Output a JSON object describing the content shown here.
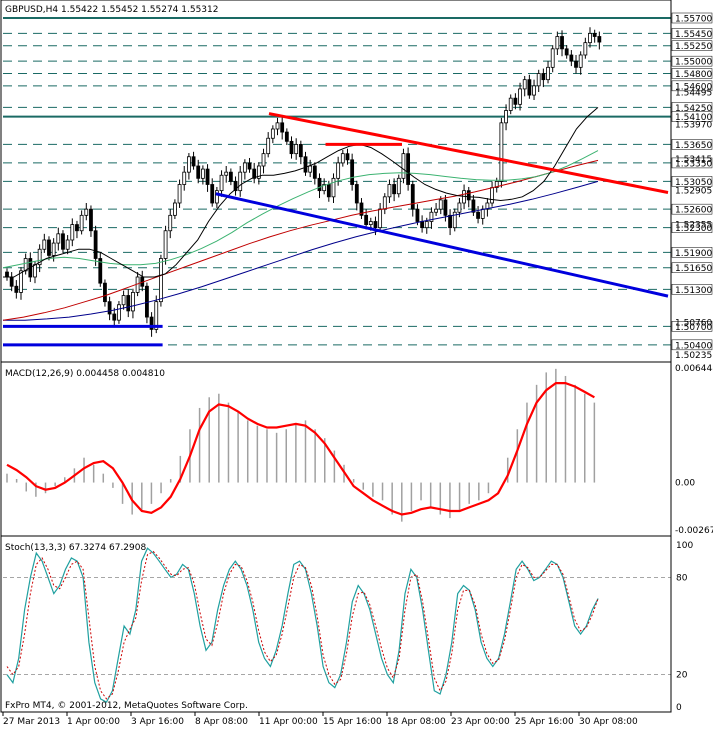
{
  "chart_data": {
    "type": "candlestick",
    "symbol_header": "GBPUSD,H4  1.55422 1.55452 1.55274 1.55312",
    "copyright": "FxPro MT4, © 2001-2012, MetaQuotes Software Corp.",
    "colors": {
      "background": "#ffffff",
      "candles": "#000000",
      "grid": "#1a6a64",
      "ma_fast": "#000000",
      "ma_green": "#3cb371",
      "ma_red": "#c00000",
      "ma_blue": "#00008b",
      "trend_red": "#ff0000",
      "trend_blue": "#0000dd",
      "macd_hist": "#a0a0a0",
      "macd_signal": "#ff0000",
      "stoch_main": "#20a0a0",
      "stoch_signal": "#cc0000"
    },
    "price_axis": {
      "min": 1.50235,
      "max": 1.557,
      "major_ticks": [
        "1.55700",
        "1.55450",
        "1.55250",
        "1.55000",
        "1.54800",
        "1.54600",
        "1.54250",
        "1.54100",
        "1.53650",
        "1.53350",
        "1.53050",
        "1.52600",
        "1.52300",
        "1.51900",
        "1.51650",
        "1.51300",
        "1.50700",
        "1.50400"
      ],
      "minor_ticks": [
        "1.54495",
        "1.53970",
        "1.53415",
        "1.52905",
        "1.52355",
        "1.50760",
        "1.50235"
      ]
    },
    "x_axis": {
      "labels": [
        "27 Mar 2013",
        "1 Apr 00:00",
        "3 Apr 16:00",
        "8 Apr 08:00",
        "11 Apr 00:00",
        "15 Apr 16:00",
        "18 Apr 08:00",
        "23 Apr 00:00",
        "25 Apr 16:00",
        "30 Apr 08:00"
      ]
    },
    "closes": [
      1.515,
      1.5135,
      1.5125,
      1.516,
      1.518,
      1.515,
      1.517,
      1.5195,
      1.521,
      1.5185,
      1.5205,
      1.522,
      1.5195,
      1.521,
      1.5235,
      1.5225,
      1.525,
      1.526,
      1.5225,
      1.518,
      1.514,
      1.511,
      1.509,
      1.508,
      1.5105,
      1.512,
      1.5095,
      1.5125,
      1.515,
      1.5135,
      1.5085,
      1.5065,
      1.511,
      1.518,
      1.5225,
      1.525,
      1.527,
      1.53,
      1.532,
      1.5345,
      1.533,
      1.531,
      1.5325,
      1.53,
      1.527,
      1.529,
      1.5315,
      1.532,
      1.5305,
      1.529,
      1.532,
      1.5335,
      1.5325,
      1.531,
      1.533,
      1.535,
      1.5375,
      1.539,
      1.54,
      1.5385,
      1.537,
      1.535,
      1.5365,
      1.5345,
      1.532,
      1.533,
      1.531,
      1.529,
      1.53,
      1.528,
      1.531,
      1.5335,
      1.535,
      1.534,
      1.53,
      1.527,
      1.525,
      1.5235,
      1.524,
      1.523,
      1.526,
      1.528,
      1.53,
      1.5285,
      1.531,
      1.535,
      1.53,
      1.526,
      1.524,
      1.523,
      1.524,
      1.5255,
      1.526,
      1.5275,
      1.525,
      1.523,
      1.5255,
      1.527,
      1.529,
      1.5275,
      1.5255,
      1.5245,
      1.526,
      1.527,
      1.5295,
      1.5305,
      1.54,
      1.542,
      1.544,
      1.543,
      1.5455,
      1.547,
      1.5445,
      1.546,
      1.548,
      1.547,
      1.549,
      1.552,
      1.554,
      1.552,
      1.551,
      1.55,
      1.549,
      1.551,
      1.553,
      1.5545,
      1.554,
      1.5531
    ],
    "ma_fast_values": [
      1.515,
      1.515,
      1.516,
      1.517,
      1.518,
      1.5185,
      1.519,
      1.5195,
      1.5195,
      1.519,
      1.518,
      1.517,
      1.516,
      1.515,
      1.515,
      1.5155,
      1.517,
      1.519,
      1.521,
      1.524,
      1.5265,
      1.5285,
      1.53,
      1.531,
      1.5315,
      1.5315,
      1.5318,
      1.5322,
      1.5328,
      1.5335,
      1.5345,
      1.5355,
      1.5362,
      1.5365,
      1.536,
      1.535,
      1.5338,
      1.5325,
      1.5312,
      1.53,
      1.5292,
      1.5286,
      1.5282,
      1.528,
      1.5279,
      1.5276,
      1.5274,
      1.5276,
      1.528,
      1.529,
      1.5305,
      1.533,
      1.536,
      1.539,
      1.541,
      1.5425
    ],
    "ma_green_values": [
      1.5165,
      1.517,
      1.5175,
      1.518,
      1.5182,
      1.518,
      1.5176,
      1.5172,
      1.517,
      1.517,
      1.5172,
      1.5178,
      1.5186,
      1.5196,
      1.5208,
      1.5222,
      1.5238,
      1.5252,
      1.5265,
      1.5277,
      1.5288,
      1.5298,
      1.5306,
      1.5312,
      1.5316,
      1.5318,
      1.5319,
      1.5318,
      1.5316,
      1.5313,
      1.531,
      1.5308,
      1.5307,
      1.5307,
      1.5309,
      1.5313,
      1.532,
      1.533,
      1.5342,
      1.5355
    ],
    "ma_red_values": [
      1.508,
      1.5085,
      1.5092,
      1.51,
      1.511,
      1.512,
      1.5132,
      1.5144,
      1.5156,
      1.5168,
      1.518,
      1.5192,
      1.5204,
      1.5215,
      1.5225,
      1.5234,
      1.5242,
      1.525,
      1.5257,
      1.5263,
      1.5269,
      1.5275,
      1.5281,
      1.5288,
      1.5296,
      1.5304,
      1.5313,
      1.5322,
      1.5331,
      1.5339
    ],
    "ma_blue_values": [
      1.508,
      1.508,
      1.5082,
      1.5085,
      1.509,
      1.5096,
      1.5104,
      1.5113,
      1.5123,
      1.5134,
      1.5146,
      1.5158,
      1.517,
      1.5182,
      1.5194,
      1.5205,
      1.5215,
      1.5224,
      1.5232,
      1.524,
      1.5247,
      1.5254,
      1.5261,
      1.5268,
      1.5276,
      1.5285,
      1.5295,
      1.5305
    ],
    "trendlines": [
      {
        "name": "red-upper",
        "color": "trend_red",
        "p1": [
          0.4,
          1.5415
        ],
        "p2": [
          1.0,
          1.5287
        ]
      },
      {
        "name": "red-short",
        "color": "trend_red",
        "p1": [
          0.485,
          1.5365
        ],
        "p2": [
          0.6,
          1.5365
        ]
      },
      {
        "name": "blue-lower",
        "color": "trend_blue",
        "p1": [
          0.32,
          1.5285
        ],
        "p2": [
          1.0,
          1.5119
        ]
      },
      {
        "name": "blue-h1",
        "color": "trend_blue",
        "p1": [
          0.0,
          1.507
        ],
        "p2": [
          0.24,
          1.507
        ]
      },
      {
        "name": "blue-h2",
        "color": "trend_blue",
        "p1": [
          0.0,
          1.504
        ],
        "p2": [
          0.24,
          1.504
        ]
      }
    ],
    "macd": {
      "header": "MACD(12,26,9) 0.004458 0.004810",
      "ticks": [
        "0.006448",
        "0.00",
        "-0.00267"
      ],
      "min": -0.00267,
      "max": 0.006448,
      "hist": [
        0.0005,
        0.0002,
        -0.0005,
        -0.0008,
        -0.0006,
        -0.0002,
        0.0003,
        0.0008,
        0.0014,
        0.001,
        0.0005,
        -0.0003,
        -0.0012,
        -0.0018,
        -0.0016,
        -0.0012,
        -0.0006,
        0.0002,
        0.0015,
        0.003,
        0.0042,
        0.0048,
        0.005,
        0.0045,
        0.004,
        0.0035,
        0.0032,
        0.003,
        0.0028,
        0.003,
        0.0033,
        0.0035,
        0.003,
        0.0025,
        0.0018,
        0.001,
        0.0002,
        -0.0004,
        -0.0008,
        -0.001,
        -0.0018,
        -0.0022,
        -0.0016,
        -0.001,
        -0.0014,
        -0.0018,
        -0.002,
        -0.0016,
        -0.0012,
        -0.001,
        -0.0006,
        0.0,
        0.0014,
        0.003,
        0.0045,
        0.0055,
        0.0062,
        0.0064,
        0.006,
        0.0055,
        0.005,
        0.0045
      ],
      "signal": [
        0.001,
        0.0007,
        0.0003,
        -0.0002,
        -0.0004,
        -0.0003,
        0.0,
        0.0004,
        0.0008,
        0.0011,
        0.0012,
        0.0008,
        0.0,
        -0.001,
        -0.0016,
        -0.0017,
        -0.0014,
        -0.0008,
        0.0002,
        0.0015,
        0.003,
        0.004,
        0.0044,
        0.0043,
        0.004,
        0.0036,
        0.0033,
        0.0031,
        0.0031,
        0.0032,
        0.0033,
        0.0032,
        0.0028,
        0.0022,
        0.0014,
        0.0006,
        -0.0002,
        -0.0006,
        -0.001,
        -0.0013,
        -0.0016,
        -0.0018,
        -0.0017,
        -0.0015,
        -0.0014,
        -0.0015,
        -0.0016,
        -0.0016,
        -0.0014,
        -0.0012,
        -0.001,
        -0.0006,
        0.0004,
        0.0018,
        0.0033,
        0.0045,
        0.0052,
        0.0056,
        0.0056,
        0.0054,
        0.0051,
        0.0048
      ]
    },
    "stoch": {
      "header": "Stoch(13,3,3) 67.3274 67.2908",
      "ticks": [
        "100",
        "80",
        "20",
        "0"
      ],
      "main": [
        20,
        15,
        30,
        60,
        80,
        95,
        90,
        80,
        70,
        75,
        85,
        92,
        90,
        80,
        40,
        15,
        5,
        3,
        10,
        30,
        50,
        45,
        60,
        90,
        98,
        95,
        90,
        85,
        80,
        82,
        88,
        85,
        70,
        50,
        35,
        40,
        60,
        75,
        85,
        90,
        85,
        75,
        60,
        40,
        30,
        25,
        35,
        50,
        70,
        88,
        90,
        85,
        70,
        50,
        25,
        15,
        12,
        20,
        40,
        65,
        75,
        70,
        60,
        45,
        30,
        20,
        15,
        35,
        70,
        85,
        80,
        60,
        35,
        10,
        8,
        20,
        40,
        70,
        75,
        72,
        60,
        40,
        30,
        25,
        30,
        45,
        65,
        85,
        90,
        85,
        78,
        80,
        85,
        90,
        88,
        80,
        65,
        50,
        45,
        50,
        60,
        67
      ],
      "signal": [
        25,
        20,
        25,
        45,
        70,
        88,
        92,
        85,
        75,
        73,
        80,
        88,
        90,
        85,
        55,
        25,
        10,
        5,
        8,
        22,
        40,
        48,
        55,
        78,
        94,
        96,
        92,
        87,
        82,
        81,
        85,
        86,
        76,
        58,
        42,
        38,
        52,
        70,
        82,
        88,
        87,
        78,
        65,
        47,
        34,
        28,
        32,
        45,
        62,
        80,
        88,
        86,
        75,
        56,
        32,
        20,
        14,
        17,
        33,
        56,
        70,
        71,
        63,
        50,
        36,
        24,
        18,
        30,
        60,
        80,
        82,
        65,
        42,
        18,
        10,
        16,
        33,
        60,
        72,
        72,
        63,
        45,
        33,
        27,
        29,
        41,
        60,
        80,
        88,
        86,
        80,
        80,
        84,
        88,
        88,
        82,
        68,
        54,
        47,
        49,
        57,
        67
      ]
    }
  }
}
